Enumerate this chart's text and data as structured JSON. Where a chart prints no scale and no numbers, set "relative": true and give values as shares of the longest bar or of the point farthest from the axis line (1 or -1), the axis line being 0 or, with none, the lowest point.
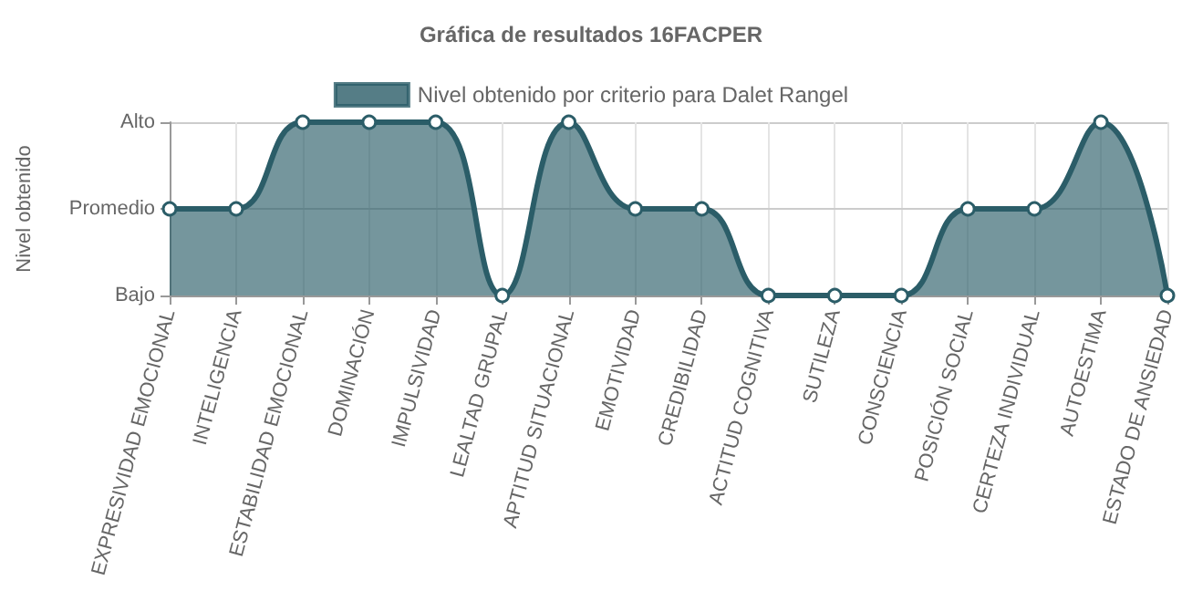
{
  "chart_data": {
    "type": "area",
    "title": "Gráfica de resultados 16FACPER",
    "ylabel": "Nivel obtenido",
    "categories": [
      "EXPRESIVIDAD EMOCIONAL",
      "INTELIGENCIA",
      "ESTABILIDAD EMOCIONAL",
      "DOMINACIÓN",
      "IMPULSIVIDAD",
      "LEALTAD GRUPAL",
      "APTITUD SITUACIONAL",
      "EMOTIVIDAD",
      "CREDIBILIDAD",
      "ACTITUD COGNITIVA",
      "SUTILEZA",
      "CONSCIENCIA",
      "POSICIÓN SOCIAL",
      "CERTEZA INDIVIDUAL",
      "AUTOESTIMA",
      "ESTADO DE ANSIEDAD"
    ],
    "y_categories": [
      "Alto",
      "Promedio",
      "Bajo"
    ],
    "series": [
      {
        "name": "Nivel obtenido por criterio para Dalet Rangel",
        "color": "#2b5d68",
        "values": [
          0.5,
          0.5,
          1,
          1,
          1,
          0,
          1,
          0.5,
          0.5,
          0,
          0,
          0,
          0.5,
          0.5,
          1,
          0
        ]
      }
    ],
    "relative": true,
    "ref_lines": [
      {
        "axis": "y",
        "value": 0.5,
        "color": "#cccccc"
      }
    ],
    "grid": true,
    "legend": "top",
    "marker": "circle"
  }
}
